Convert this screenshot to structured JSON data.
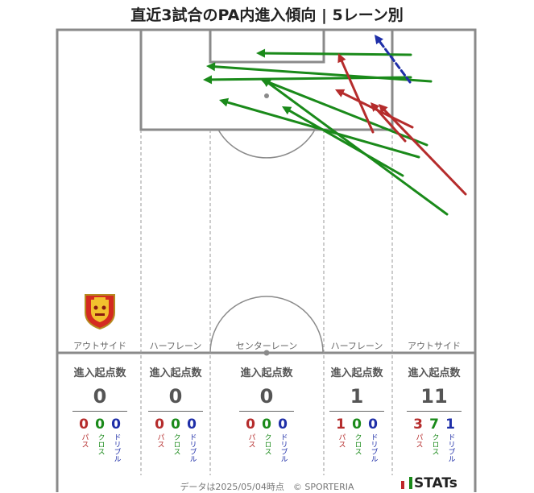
{
  "title": "直近3試合のPA内進入傾向 | 5レーン別",
  "lanes": [
    {
      "id": "out-left",
      "label": "アウトサイド",
      "total": "0",
      "pass": "0",
      "cross": "0",
      "dribble": "0"
    },
    {
      "id": "half-left",
      "label": "ハーフレーン",
      "total": "0",
      "pass": "0",
      "cross": "0",
      "dribble": "0"
    },
    {
      "id": "center",
      "label": "センターレーン",
      "total": "0",
      "pass": "0",
      "cross": "0",
      "dribble": "0"
    },
    {
      "id": "half-right",
      "label": "ハーフレーン",
      "total": "1",
      "pass": "1",
      "cross": "0",
      "dribble": "0"
    },
    {
      "id": "out-right",
      "label": "アウトサイド",
      "total": "11",
      "pass": "3",
      "cross": "7",
      "dribble": "1"
    }
  ],
  "stat_heading": "進入起点数",
  "type_labels": {
    "pass": "パス",
    "cross": "クロス",
    "dribble": "ドリブル"
  },
  "colors": {
    "pass": "#b52c2c",
    "cross": "#1a8a1a",
    "dribble": "#1f2fa8",
    "lines": "#8a8a8a"
  },
  "footer": "データは2025/05/04時点　© SPORTERIA",
  "brand": "STATs",
  "arrows": [
    {
      "type": "cross",
      "from": [
        510,
        68
      ],
      "to": [
        318,
        66
      ]
    },
    {
      "type": "cross",
      "from": [
        535,
        101
      ],
      "to": [
        256,
        82
      ]
    },
    {
      "type": "cross",
      "from": [
        510,
        96
      ],
      "to": [
        252,
        99
      ]
    },
    {
      "type": "cross",
      "from": [
        530,
        180
      ],
      "to": [
        323,
        98
      ]
    },
    {
      "type": "cross",
      "from": [
        520,
        195
      ],
      "to": [
        272,
        124
      ]
    },
    {
      "type": "cross",
      "from": [
        500,
        218
      ],
      "to": [
        350,
        132
      ]
    },
    {
      "type": "cross",
      "from": [
        555,
        266
      ],
      "to": [
        325,
        97
      ]
    },
    {
      "type": "pass",
      "from": [
        463,
        164
      ],
      "to": [
        420,
        66
      ]
    },
    {
      "type": "pass",
      "from": [
        512,
        158
      ],
      "to": [
        416,
        111
      ]
    },
    {
      "type": "pass",
      "from": [
        503,
        175
      ],
      "to": [
        460,
        127
      ]
    },
    {
      "type": "pass",
      "from": [
        578,
        241
      ],
      "to": [
        470,
        129
      ]
    },
    {
      "type": "dribble",
      "from": [
        509,
        102
      ],
      "to": [
        465,
        43
      ]
    }
  ]
}
